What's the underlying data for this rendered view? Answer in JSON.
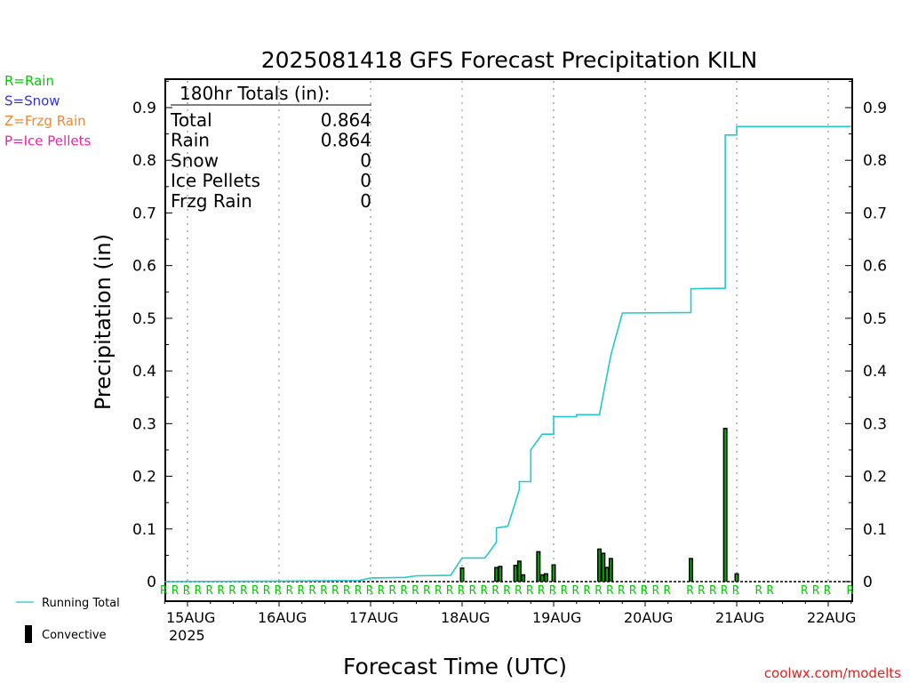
{
  "chart_data": {
    "type": "bar",
    "title": "2025081418 GFS Forecast Precipitation KILN",
    "xlabel": "Forecast Time (UTC)",
    "ylabel": "Precipitation (in)",
    "ylim": [
      0,
      0.95
    ],
    "yticks": [
      "0",
      "0.1",
      "0.2",
      "0.3",
      "0.4",
      "0.5",
      "0.6",
      "0.7",
      "0.8",
      "0.9"
    ],
    "x_axis": {
      "unit": "day",
      "start": "2025-08-14T18",
      "end": "2025-08-22T06",
      "year_label": "2025",
      "ticks": [
        {
          "label": "15AUG",
          "day": "2025-08-15"
        },
        {
          "label": "16AUG",
          "day": "2025-08-16"
        },
        {
          "label": "17AUG",
          "day": "2025-08-17"
        },
        {
          "label": "18AUG",
          "day": "2025-08-18"
        },
        {
          "label": "19AUG",
          "day": "2025-08-19"
        },
        {
          "label": "20AUG",
          "day": "2025-08-20"
        },
        {
          "label": "21AUG",
          "day": "2025-08-21"
        },
        {
          "label": "22AUG",
          "day": "2025-08-22"
        }
      ]
    },
    "grid": "vertical dotted at each day",
    "line_color": "#22c8cc",
    "bar_color": "#00aa00",
    "running_total": [
      {
        "t": "2025-08-14T18",
        "y": 0.0
      },
      {
        "t": "2025-08-16T00",
        "y": 0.001
      },
      {
        "t": "2025-08-16T21",
        "y": 0.002
      },
      {
        "t": "2025-08-17T00",
        "y": 0.007
      },
      {
        "t": "2025-08-17T09",
        "y": 0.008
      },
      {
        "t": "2025-08-17T12",
        "y": 0.011
      },
      {
        "t": "2025-08-17T21",
        "y": 0.012
      },
      {
        "t": "2025-08-18T00",
        "y": 0.045
      },
      {
        "t": "2025-08-18T06",
        "y": 0.045
      },
      {
        "t": "2025-08-18T09",
        "y": 0.075
      },
      {
        "t": "2025-08-18T09",
        "y": 0.102
      },
      {
        "t": "2025-08-18T12",
        "y": 0.105
      },
      {
        "t": "2025-08-18T15",
        "y": 0.175
      },
      {
        "t": "2025-08-18T15",
        "y": 0.19
      },
      {
        "t": "2025-08-18T18",
        "y": 0.19
      },
      {
        "t": "2025-08-18T18",
        "y": 0.25
      },
      {
        "t": "2025-08-18T21",
        "y": 0.28
      },
      {
        "t": "2025-08-19T00",
        "y": 0.28
      },
      {
        "t": "2025-08-19T00",
        "y": 0.313
      },
      {
        "t": "2025-08-19T06",
        "y": 0.313
      },
      {
        "t": "2025-08-19T06",
        "y": 0.317
      },
      {
        "t": "2025-08-19T12",
        "y": 0.317
      },
      {
        "t": "2025-08-19T15",
        "y": 0.43
      },
      {
        "t": "2025-08-19T18",
        "y": 0.51
      },
      {
        "t": "2025-08-20T12",
        "y": 0.511
      },
      {
        "t": "2025-08-20T12",
        "y": 0.556
      },
      {
        "t": "2025-08-20T21",
        "y": 0.557
      },
      {
        "t": "2025-08-20T21",
        "y": 0.848
      },
      {
        "t": "2025-08-21T00",
        "y": 0.848
      },
      {
        "t": "2025-08-21T00",
        "y": 0.864
      },
      {
        "t": "2025-08-22T06",
        "y": 0.864
      }
    ],
    "convective_bars": [
      {
        "t": "2025-08-18T00",
        "y": 0.027
      },
      {
        "t": "2025-08-18T09",
        "y": 0.028
      },
      {
        "t": "2025-08-18T10",
        "y": 0.03
      },
      {
        "t": "2025-08-18T14",
        "y": 0.032
      },
      {
        "t": "2025-08-18T15",
        "y": 0.04
      },
      {
        "t": "2025-08-18T16",
        "y": 0.014
      },
      {
        "t": "2025-08-18T20",
        "y": 0.058
      },
      {
        "t": "2025-08-18T21",
        "y": 0.014
      },
      {
        "t": "2025-08-18T22",
        "y": 0.016
      },
      {
        "t": "2025-08-19T00",
        "y": 0.033
      },
      {
        "t": "2025-08-19T12",
        "y": 0.063
      },
      {
        "t": "2025-08-19T13",
        "y": 0.055
      },
      {
        "t": "2025-08-19T14",
        "y": 0.028
      },
      {
        "t": "2025-08-19T15",
        "y": 0.045
      },
      {
        "t": "2025-08-20T12",
        "y": 0.045
      },
      {
        "t": "2025-08-20T21",
        "y": 0.292
      },
      {
        "t": "2025-08-21T00",
        "y": 0.016
      }
    ],
    "precip_type_row": {
      "symbol": "R",
      "color": "#00cc00",
      "note_legend": "R=Rain"
    },
    "legend": [
      {
        "label": "R=Rain",
        "color": "#00cc00"
      },
      {
        "label": "S=Snow",
        "color": "#3333dd"
      },
      {
        "label": "Z=Frzg Rain",
        "color": "#ee8833"
      },
      {
        "label": "P=Ice Pellets",
        "color": "#ee22aa"
      }
    ],
    "series_legend": [
      {
        "label": "Running Total",
        "color": "#22c8cc"
      },
      {
        "label": "Convective",
        "color": "#000000"
      }
    ],
    "totals_box": {
      "heading": "180hr Totals (in):",
      "rows": [
        {
          "label": "Total",
          "value": "0.864"
        },
        {
          "label": "Rain",
          "value": "0.864"
        },
        {
          "label": "Snow",
          "value": "0"
        },
        {
          "label": "Ice Pellets",
          "value": "0"
        },
        {
          "label": "Frzg Rain",
          "value": "0"
        }
      ]
    },
    "credit": "coolwx.com/modelts"
  }
}
